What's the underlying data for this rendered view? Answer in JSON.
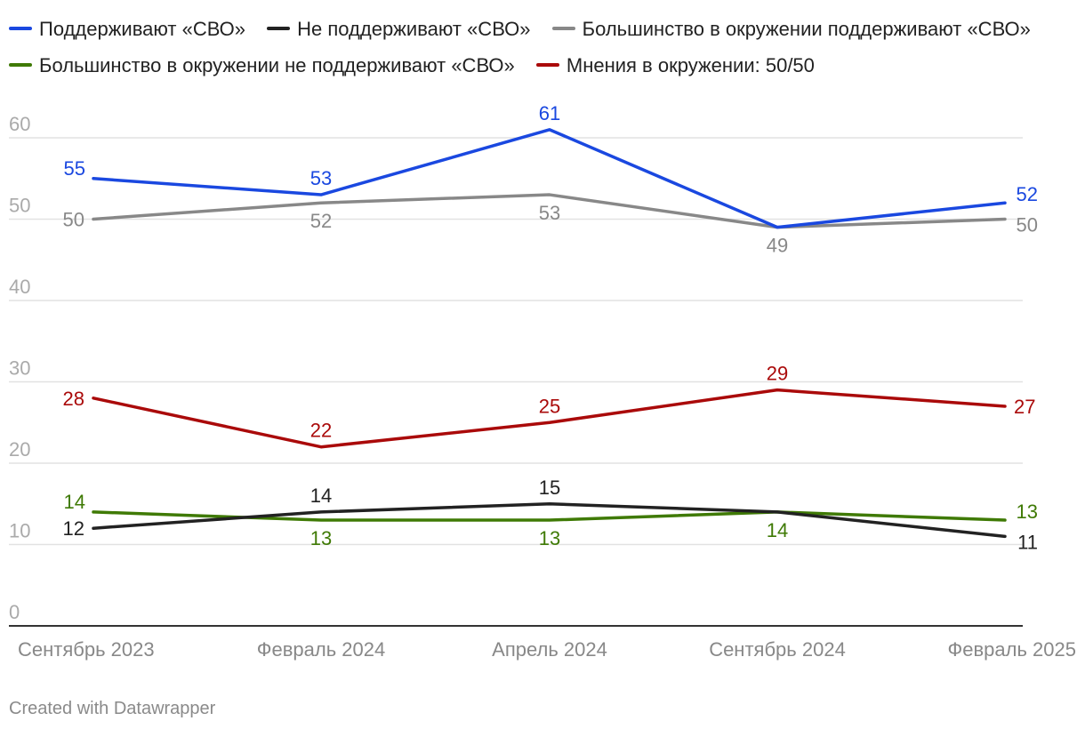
{
  "chart_data": {
    "type": "line",
    "title": "",
    "xlabel": "",
    "ylabel": "",
    "categories": [
      "Сентябрь 2023",
      "Февраль 2024",
      "Апрель 2024",
      "Сентябрь 2024",
      "Февраль 2025"
    ],
    "ylim": [
      0,
      60
    ],
    "yticks": [
      0,
      10,
      20,
      30,
      40,
      50,
      60
    ],
    "grid": true,
    "legend_position": "top",
    "series": [
      {
        "name": "Поддерживают «СВО»",
        "color": "#1a48e0",
        "values": [
          55,
          53,
          61,
          49,
          52
        ],
        "labels": [
          "55",
          "53",
          "61",
          "",
          "52"
        ],
        "label_pos": [
          "above",
          "above",
          "above",
          "above",
          "above"
        ]
      },
      {
        "name": "Не поддерживают «СВО»",
        "color": "#222222",
        "values": [
          12,
          14,
          15,
          14,
          11
        ],
        "labels": [
          "12",
          "14",
          "15",
          "",
          "11"
        ],
        "label_pos": [
          "left",
          "above",
          "above",
          "above",
          "below"
        ]
      },
      {
        "name": "Большинство в окружении поддерживают «СВО»",
        "color": "#888888",
        "values": [
          50,
          52,
          53,
          49,
          50
        ],
        "labels": [
          "50",
          "52",
          "53",
          "49",
          "50"
        ],
        "label_pos": [
          "left",
          "below",
          "below",
          "below",
          "below"
        ]
      },
      {
        "name": "Большинство в окружении не поддерживают «СВО»",
        "color": "#3f7a05",
        "values": [
          14,
          13,
          13,
          14,
          13
        ],
        "labels": [
          "14",
          "13",
          "13",
          "14",
          "13"
        ],
        "label_pos": [
          "above",
          "below",
          "below",
          "below",
          "above"
        ]
      },
      {
        "name": "Мнения в окружении: 50/50",
        "color": "#aa0a0a",
        "values": [
          28,
          22,
          25,
          29,
          27
        ],
        "labels": [
          "28",
          "22",
          "25",
          "29",
          "27"
        ],
        "label_pos": [
          "left",
          "above",
          "above",
          "above",
          "right"
        ]
      }
    ]
  },
  "footer": {
    "credit": "Created with Datawrapper"
  }
}
